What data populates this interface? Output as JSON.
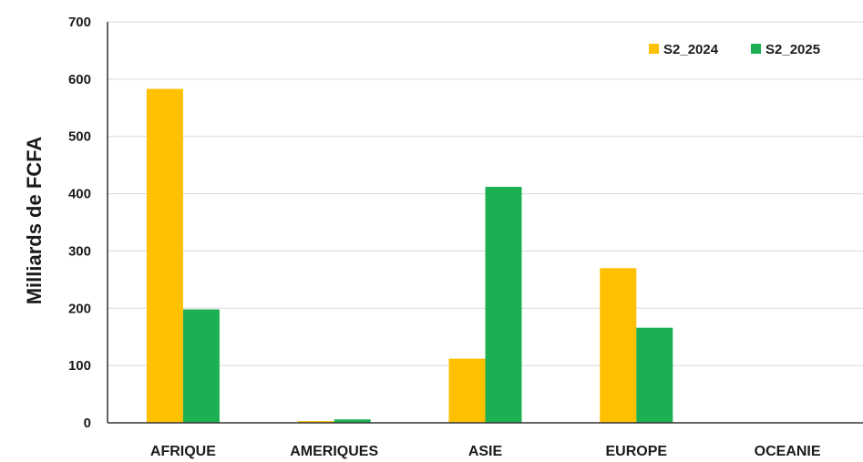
{
  "chart_data": {
    "type": "bar",
    "title": "",
    "xlabel": "",
    "ylabel": "Milliards de FCFA",
    "categories": [
      "AFRIQUE",
      "AMERIQUES",
      "ASIE",
      "EUROPE",
      "OCEANIE"
    ],
    "series": [
      {
        "name": "S2_2024",
        "color": "#FFC000",
        "values": [
          583,
          3,
          112,
          270,
          0
        ]
      },
      {
        "name": "S2_2025",
        "color": "#1DB052",
        "values": [
          198,
          6,
          412,
          166,
          0
        ]
      }
    ],
    "ylim": [
      0,
      700
    ],
    "yticks": [
      0,
      100,
      200,
      300,
      400,
      500,
      600,
      700
    ],
    "grid": true,
    "legend_position": "top-right"
  }
}
